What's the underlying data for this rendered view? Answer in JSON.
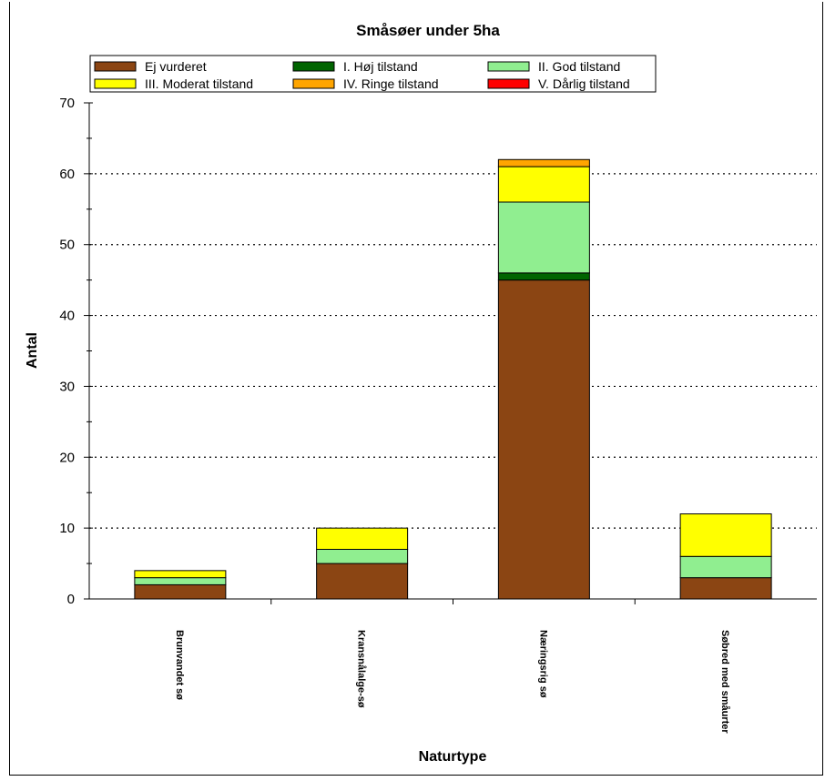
{
  "chart_data": {
    "type": "bar",
    "stacked": true,
    "title": "Småsøer under 5ha",
    "xlabel": "Naturtype",
    "ylabel": "Antal",
    "ylim": [
      0,
      70
    ],
    "yticks": [
      0,
      10,
      20,
      30,
      40,
      50,
      60,
      70
    ],
    "grid": "horizontal-dotted",
    "legend_position": "top",
    "categories": [
      "Brunvandet sø",
      "Kransnålalge-sø",
      "Næringsrig sø",
      "Søbred med småurter"
    ],
    "series": [
      {
        "name": "Ej vurderet",
        "color": "#8B4513",
        "values": [
          2,
          5,
          45,
          3
        ]
      },
      {
        "name": "I. Høj tilstand",
        "color": "#006400",
        "values": [
          0,
          0,
          1,
          0
        ]
      },
      {
        "name": "II. God tilstand",
        "color": "#90EE90",
        "values": [
          1,
          2,
          10,
          3
        ]
      },
      {
        "name": "III. Moderat tilstand",
        "color": "#FFFF00",
        "values": [
          1,
          3,
          5,
          6
        ]
      },
      {
        "name": "IV. Ringe tilstand",
        "color": "#FFA500",
        "values": [
          0,
          0,
          1,
          0
        ]
      },
      {
        "name": "V. Dårlig tilstand",
        "color": "#FF0000",
        "values": [
          0,
          0,
          0,
          0
        ]
      }
    ]
  }
}
